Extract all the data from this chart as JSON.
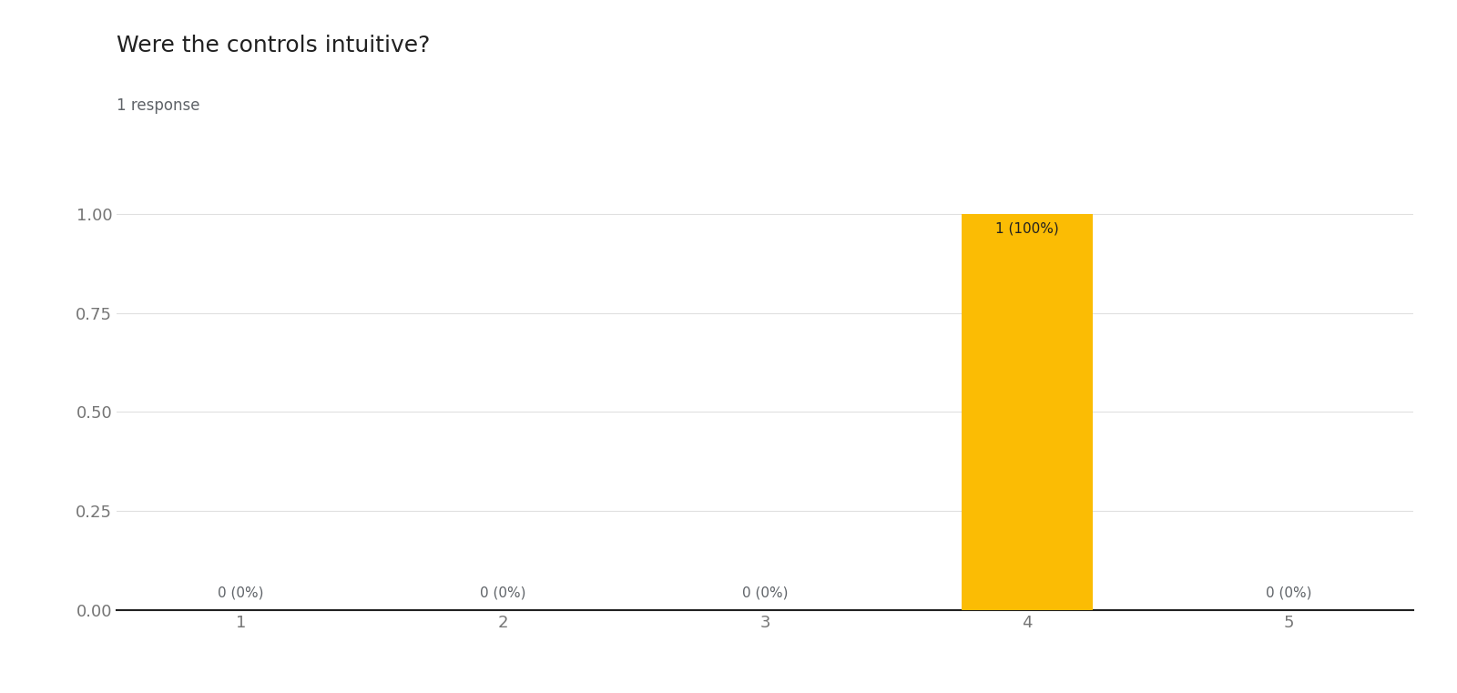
{
  "title": "Were the controls intuitive?",
  "subtitle": "1 response",
  "categories": [
    1,
    2,
    3,
    4,
    5
  ],
  "values": [
    0,
    0,
    0,
    1.0,
    0
  ],
  "bar_labels": [
    "0 (0%)",
    "0 (0%)",
    "0 (0%)",
    "1 (100%)",
    "0 (0%)"
  ],
  "active_bar_color": "#FBBC04",
  "ylim": [
    0,
    1.05
  ],
  "yticks": [
    0.0,
    0.25,
    0.5,
    0.75,
    1.0
  ],
  "background_color": "#ffffff",
  "title_fontsize": 18,
  "subtitle_fontsize": 12,
  "tick_fontsize": 13,
  "label_fontsize": 11,
  "title_color": "#212121",
  "subtitle_color": "#5f6368",
  "tick_color": "#757575",
  "label_color": "#5f6368",
  "bar_width": 0.5,
  "grid_color": "#e0e0e0"
}
